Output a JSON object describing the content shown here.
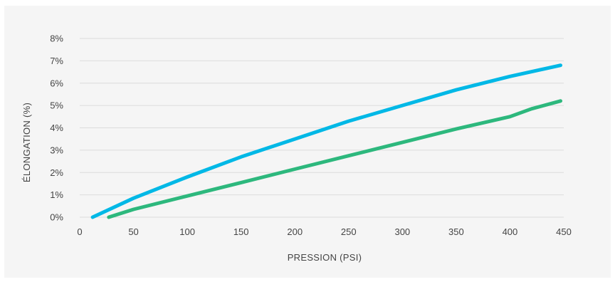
{
  "chart_data": {
    "type": "line",
    "title": "",
    "xlabel": "PRESSION (PSI)",
    "ylabel": "ÉLONGATION (%)",
    "xlim": [
      0,
      450
    ],
    "ylim": [
      0,
      8
    ],
    "x_ticks": [
      "0",
      "50",
      "100",
      "150",
      "200",
      "250",
      "300",
      "350",
      "400",
      "450"
    ],
    "y_ticks": [
      "0%",
      "1%",
      "2%",
      "3%",
      "4%",
      "5%",
      "6%",
      "7%",
      "8%"
    ],
    "grid": true,
    "legend": "none",
    "series": [
      {
        "color": "#00b8e6",
        "x": [
          12,
          50,
          100,
          150,
          200,
          250,
          300,
          350,
          400,
          447
        ],
        "y": [
          0.0,
          0.85,
          1.8,
          2.7,
          3.5,
          4.3,
          5.0,
          5.7,
          6.3,
          6.8
        ]
      },
      {
        "color": "#2db87d",
        "x": [
          27,
          50,
          100,
          150,
          200,
          250,
          300,
          350,
          400,
          420,
          447
        ],
        "y": [
          0.0,
          0.35,
          0.95,
          1.55,
          2.15,
          2.75,
          3.35,
          3.95,
          4.5,
          4.85,
          5.2
        ]
      }
    ]
  }
}
